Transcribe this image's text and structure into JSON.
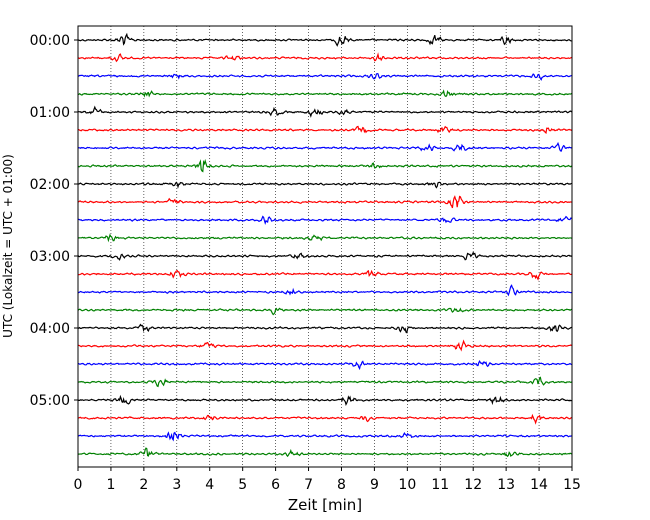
{
  "chart_data": {
    "type": "line",
    "title": "",
    "xlabel": "Zeit  [min]",
    "ylabel": "UTC (Lokalzeit = UTC + 01:00)",
    "xlim": [
      0,
      15
    ],
    "x_ticks": [
      "0",
      "1",
      "2",
      "3",
      "4",
      "5",
      "6",
      "7",
      "8",
      "9",
      "10",
      "11",
      "12",
      "13",
      "14",
      "15"
    ],
    "y_ticks": [
      "00:00",
      "01:00",
      "02:00",
      "03:00",
      "04:00",
      "05:00"
    ],
    "grid": "vertical dotted lines at each minute",
    "trace_minutes": 15,
    "trace_count": 24,
    "trace_colors": [
      "#000000",
      "#ff0000",
      "#0000ff",
      "#008000"
    ],
    "bursts": [
      {
        "trace": 0,
        "x": 1.4,
        "amp": 0.9
      },
      {
        "trace": 0,
        "x": 8.0,
        "amp": 1.0
      },
      {
        "trace": 0,
        "x": 10.8,
        "amp": 0.9
      },
      {
        "trace": 0,
        "x": 13.0,
        "amp": 0.7
      },
      {
        "trace": 1,
        "x": 1.2,
        "amp": 0.5
      },
      {
        "trace": 1,
        "x": 4.7,
        "amp": 0.5
      },
      {
        "trace": 1,
        "x": 9.1,
        "amp": 0.6
      },
      {
        "trace": 2,
        "x": 3.0,
        "amp": 0.4
      },
      {
        "trace": 2,
        "x": 9.0,
        "amp": 0.5
      },
      {
        "trace": 2,
        "x": 14.0,
        "amp": 0.5
      },
      {
        "trace": 3,
        "x": 2.1,
        "amp": 0.5
      },
      {
        "trace": 3,
        "x": 11.2,
        "amp": 0.6
      },
      {
        "trace": 4,
        "x": 0.5,
        "amp": 0.6
      },
      {
        "trace": 4,
        "x": 6.0,
        "amp": 0.6
      },
      {
        "trace": 4,
        "x": 7.2,
        "amp": 0.8
      },
      {
        "trace": 4,
        "x": 8.1,
        "amp": 0.6
      },
      {
        "trace": 5,
        "x": 8.6,
        "amp": 0.6
      },
      {
        "trace": 5,
        "x": 11.1,
        "amp": 0.6
      },
      {
        "trace": 5,
        "x": 14.2,
        "amp": 0.6
      },
      {
        "trace": 6,
        "x": 10.6,
        "amp": 0.7
      },
      {
        "trace": 6,
        "x": 11.6,
        "amp": 0.6
      },
      {
        "trace": 6,
        "x": 14.6,
        "amp": 0.5
      },
      {
        "trace": 7,
        "x": 3.8,
        "amp": 1.5
      },
      {
        "trace": 7,
        "x": 9.0,
        "amp": 0.5
      },
      {
        "trace": 8,
        "x": 3.0,
        "amp": 0.5
      },
      {
        "trace": 8,
        "x": 10.8,
        "amp": 0.6
      },
      {
        "trace": 9,
        "x": 11.5,
        "amp": 1.6
      },
      {
        "trace": 9,
        "x": 2.9,
        "amp": 0.5
      },
      {
        "trace": 10,
        "x": 5.7,
        "amp": 0.7
      },
      {
        "trace": 10,
        "x": 11.2,
        "amp": 0.6
      },
      {
        "trace": 10,
        "x": 14.8,
        "amp": 0.6
      },
      {
        "trace": 11,
        "x": 1.0,
        "amp": 0.6
      },
      {
        "trace": 11,
        "x": 7.2,
        "amp": 0.6
      },
      {
        "trace": 12,
        "x": 1.2,
        "amp": 0.5
      },
      {
        "trace": 12,
        "x": 6.7,
        "amp": 0.6
      },
      {
        "trace": 12,
        "x": 11.9,
        "amp": 0.6
      },
      {
        "trace": 13,
        "x": 3.0,
        "amp": 0.8
      },
      {
        "trace": 13,
        "x": 8.9,
        "amp": 0.6
      },
      {
        "trace": 13,
        "x": 13.9,
        "amp": 0.8
      },
      {
        "trace": 14,
        "x": 6.5,
        "amp": 0.5
      },
      {
        "trace": 14,
        "x": 13.2,
        "amp": 0.9
      },
      {
        "trace": 15,
        "x": 6.0,
        "amp": 0.5
      },
      {
        "trace": 15,
        "x": 11.5,
        "amp": 0.5
      },
      {
        "trace": 16,
        "x": 2.0,
        "amp": 0.6
      },
      {
        "trace": 16,
        "x": 9.9,
        "amp": 0.7
      },
      {
        "trace": 16,
        "x": 14.5,
        "amp": 0.8
      },
      {
        "trace": 17,
        "x": 3.9,
        "amp": 0.6
      },
      {
        "trace": 17,
        "x": 11.6,
        "amp": 1.0
      },
      {
        "trace": 18,
        "x": 8.5,
        "amp": 0.5
      },
      {
        "trace": 18,
        "x": 12.3,
        "amp": 0.7
      },
      {
        "trace": 19,
        "x": 2.5,
        "amp": 0.7
      },
      {
        "trace": 19,
        "x": 14.0,
        "amp": 0.6
      },
      {
        "trace": 20,
        "x": 1.4,
        "amp": 0.9
      },
      {
        "trace": 20,
        "x": 8.2,
        "amp": 0.8
      },
      {
        "trace": 20,
        "x": 12.7,
        "amp": 0.7
      },
      {
        "trace": 21,
        "x": 4.0,
        "amp": 0.5
      },
      {
        "trace": 21,
        "x": 8.7,
        "amp": 0.6
      },
      {
        "trace": 21,
        "x": 13.9,
        "amp": 0.6
      },
      {
        "trace": 22,
        "x": 2.9,
        "amp": 1.0
      },
      {
        "trace": 22,
        "x": 10.0,
        "amp": 0.5
      },
      {
        "trace": 23,
        "x": 2.1,
        "amp": 0.8
      },
      {
        "trace": 23,
        "x": 6.5,
        "amp": 0.5
      },
      {
        "trace": 23,
        "x": 13.1,
        "amp": 0.5
      }
    ]
  }
}
